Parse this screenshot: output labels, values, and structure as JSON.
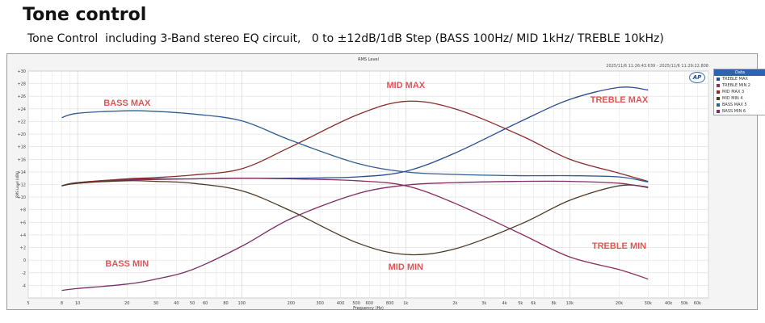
{
  "header": {
    "title": "Tone control",
    "subtitle": "Tone Control  including 3-Band stereo EQ circuit,   0 to ±12dB/1dB Step (BASS 100Hz/ MID 1kHz/ TREBLE 10kHz)"
  },
  "plot_header": {
    "title": "RMS Level",
    "timestamp": "2025/11/6 11:26:43.639 - 2025/11/6 11:29:22.808",
    "logo": "AP"
  },
  "legend": {
    "title": "Data",
    "items": [
      "TREBLE MAX",
      "TREBLE MIN 2",
      "MID MAX 3",
      "MID MIN 4",
      "BASS MAX 5",
      "BASS MIN 6"
    ]
  },
  "chart_data": {
    "type": "line",
    "title": "RMS Level",
    "xlabel": "Frequency (Hz)",
    "ylabel": "RMS Level (dBV)",
    "x_scale": "log",
    "xlim": [
      5,
      70000
    ],
    "ylim": [
      -6,
      30
    ],
    "grid": true,
    "legend_position": "right",
    "x_ticks": [
      {
        "v": 5,
        "label": "5"
      },
      {
        "v": 8,
        "label": "8"
      },
      {
        "v": 10,
        "label": "10"
      },
      {
        "v": 20,
        "label": "20"
      },
      {
        "v": 30,
        "label": "30"
      },
      {
        "v": 40,
        "label": "40"
      },
      {
        "v": 50,
        "label": "50"
      },
      {
        "v": 60,
        "label": "60"
      },
      {
        "v": 80,
        "label": "80"
      },
      {
        "v": 100,
        "label": "100"
      },
      {
        "v": 200,
        "label": "200"
      },
      {
        "v": 300,
        "label": "300"
      },
      {
        "v": 400,
        "label": "400"
      },
      {
        "v": 500,
        "label": "500"
      },
      {
        "v": 600,
        "label": "600"
      },
      {
        "v": 800,
        "label": "800"
      },
      {
        "v": 1000,
        "label": "1k"
      },
      {
        "v": 2000,
        "label": "2k"
      },
      {
        "v": 3000,
        "label": "3k"
      },
      {
        "v": 4000,
        "label": "4k"
      },
      {
        "v": 5000,
        "label": "5k"
      },
      {
        "v": 6000,
        "label": "6k"
      },
      {
        "v": 8000,
        "label": "8k"
      },
      {
        "v": 10000,
        "label": "10k"
      },
      {
        "v": 20000,
        "label": "20k"
      },
      {
        "v": 30000,
        "label": "30k"
      },
      {
        "v": 40000,
        "label": "40k"
      },
      {
        "v": 50000,
        "label": "50k"
      },
      {
        "v": 60000,
        "label": "60k"
      }
    ],
    "y_ticks": [
      -4,
      -2,
      0,
      2,
      4,
      6,
      8,
      10,
      12,
      14,
      16,
      18,
      20,
      22,
      24,
      26,
      28,
      30
    ],
    "x": [
      8,
      10,
      20,
      30,
      50,
      100,
      200,
      500,
      1000,
      2000,
      5000,
      10000,
      20000,
      30000
    ],
    "series": [
      {
        "name": "TREBLE MAX",
        "color": "#2b4b8f",
        "values": [
          11.8,
          12.3,
          12.8,
          12.9,
          12.9,
          13.0,
          13.0,
          13.2,
          14.1,
          17.0,
          22.0,
          25.5,
          27.4,
          27.0
        ]
      },
      {
        "name": "TREBLE MIN 2",
        "color": "#8c2f5a",
        "values": [
          11.8,
          12.2,
          12.7,
          12.8,
          12.9,
          13.0,
          12.9,
          12.6,
          11.8,
          9.0,
          4.2,
          0.5,
          -1.5,
          -3.0
        ]
      },
      {
        "name": "MID MAX 3",
        "color": "#8c2a2a",
        "values": [
          11.8,
          12.3,
          12.9,
          13.1,
          13.5,
          14.5,
          18.0,
          23.0,
          25.2,
          24.0,
          19.8,
          16.0,
          13.8,
          12.5
        ]
      },
      {
        "name": "MID MIN 4",
        "color": "#4a3a22",
        "values": [
          11.8,
          12.2,
          12.6,
          12.5,
          12.2,
          11.0,
          7.8,
          2.8,
          0.9,
          1.8,
          5.7,
          9.5,
          11.8,
          11.6
        ]
      },
      {
        "name": "BASS MAX 5",
        "color": "#2f5d92",
        "values": [
          22.6,
          23.3,
          23.7,
          23.6,
          23.2,
          22.1,
          19.0,
          15.4,
          14.0,
          13.6,
          13.4,
          13.4,
          13.2,
          12.4
        ]
      },
      {
        "name": "BASS MIN 6",
        "color": "#7c2f66",
        "values": [
          -4.8,
          -4.5,
          -3.8,
          -3.0,
          -1.5,
          2.2,
          6.6,
          10.5,
          11.9,
          12.3,
          12.5,
          12.5,
          12.2,
          11.5
        ]
      }
    ],
    "annotations": [
      {
        "text": "BASS  MAX",
        "x": 20,
        "y": 24.5
      },
      {
        "text": "MID  MAX",
        "x": 1000,
        "y": 27.3
      },
      {
        "text": "TREBLE MAX",
        "x": 20000,
        "y": 25.0
      },
      {
        "text": "BASS  MIN",
        "x": 20,
        "y": -1.0
      },
      {
        "text": "MID MIN",
        "x": 1000,
        "y": -1.5
      },
      {
        "text": "TREBLE MIN",
        "x": 20000,
        "y": 1.8
      }
    ],
    "annotation_color": "#e05555"
  }
}
